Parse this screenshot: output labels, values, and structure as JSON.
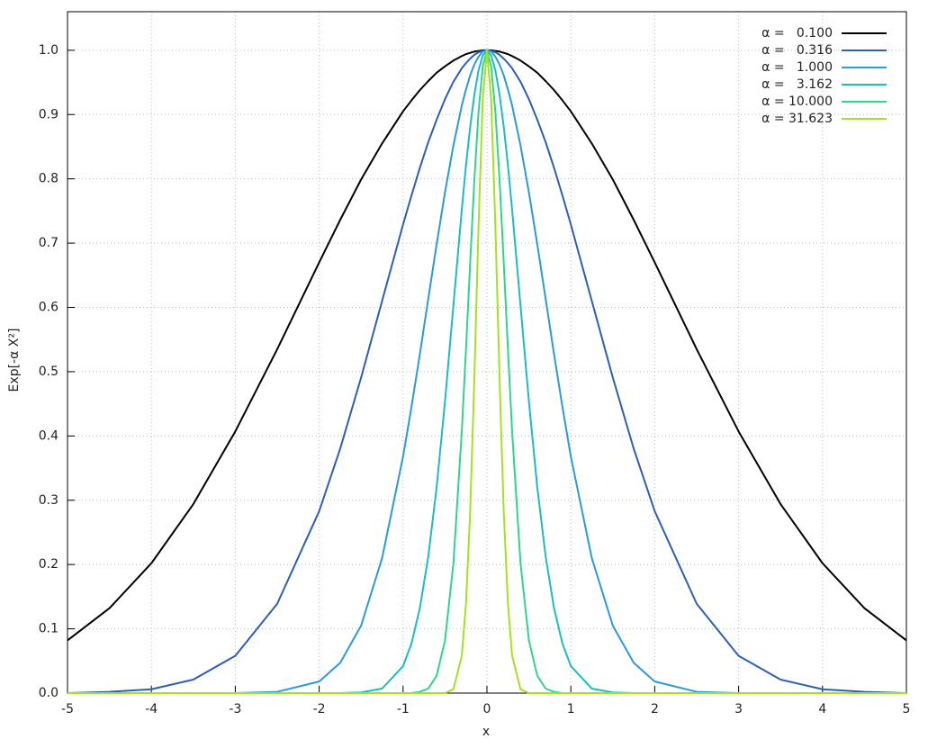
{
  "chart_data": {
    "type": "line",
    "xlabel": "x",
    "ylabel": "Exp[-α X²]",
    "x": [
      -5,
      -4.5,
      -4,
      -3.5,
      -3,
      -2.5,
      -2,
      -1.75,
      -1.5,
      -1.25,
      -1,
      -0.9,
      -0.8,
      -0.7,
      -0.6,
      -0.5,
      -0.4,
      -0.3,
      -0.25,
      -0.2,
      -0.15,
      -0.1,
      -0.05,
      0,
      0.05,
      0.1,
      0.15,
      0.2,
      0.25,
      0.3,
      0.4,
      0.5,
      0.6,
      0.7,
      0.8,
      0.9,
      1,
      1.25,
      1.5,
      1.75,
      2,
      2.5,
      3,
      3.5,
      4,
      4.5,
      5
    ],
    "series": [
      {
        "name": "α =   0.100",
        "color": "#000000",
        "values": [
          0.082,
          0.132,
          0.202,
          0.294,
          0.407,
          0.535,
          0.67,
          0.736,
          0.799,
          0.855,
          0.905,
          0.922,
          0.938,
          0.952,
          0.965,
          0.975,
          0.984,
          0.991,
          0.994,
          0.996,
          0.998,
          0.999,
          1,
          1,
          1,
          0.999,
          0.998,
          0.996,
          0.994,
          0.991,
          0.984,
          0.975,
          0.965,
          0.952,
          0.938,
          0.922,
          0.905,
          0.855,
          0.799,
          0.736,
          0.67,
          0.535,
          0.407,
          0.294,
          0.202,
          0.132,
          0.082
        ]
      },
      {
        "name": "α =   0.316",
        "color": "#2c5fb3",
        "values": [
          0,
          0.002,
          0.006,
          0.021,
          0.058,
          0.139,
          0.283,
          0.38,
          0.491,
          0.61,
          0.729,
          0.774,
          0.817,
          0.857,
          0.892,
          0.924,
          0.951,
          0.972,
          0.98,
          0.987,
          0.993,
          0.997,
          0.999,
          1,
          0.999,
          0.997,
          0.993,
          0.987,
          0.98,
          0.972,
          0.951,
          0.924,
          0.892,
          0.857,
          0.817,
          0.774,
          0.729,
          0.61,
          0.491,
          0.38,
          0.283,
          0.139,
          0.058,
          0.021,
          0.006,
          0.002,
          0
        ]
      },
      {
        "name": "α =   1.000",
        "color": "#2a9ad8",
        "values": [
          0,
          0,
          0,
          0,
          0,
          0.002,
          0.018,
          0.047,
          0.105,
          0.21,
          0.368,
          0.445,
          0.527,
          0.613,
          0.698,
          0.779,
          0.852,
          0.914,
          0.939,
          0.961,
          0.978,
          0.99,
          0.998,
          1,
          0.998,
          0.99,
          0.978,
          0.961,
          0.939,
          0.914,
          0.852,
          0.779,
          0.698,
          0.613,
          0.527,
          0.445,
          0.368,
          0.21,
          0.105,
          0.047,
          0.018,
          0.002,
          0,
          0,
          0,
          0,
          0
        ]
      },
      {
        "name": "α =   3.162",
        "color": "#1cbcc4",
        "values": [
          0,
          0,
          0,
          0,
          0,
          0,
          0,
          0,
          0.001,
          0.007,
          0.042,
          0.077,
          0.132,
          0.212,
          0.32,
          0.454,
          0.603,
          0.752,
          0.821,
          0.881,
          0.931,
          0.969,
          0.992,
          1,
          0.992,
          0.969,
          0.931,
          0.881,
          0.821,
          0.752,
          0.603,
          0.454,
          0.32,
          0.212,
          0.132,
          0.077,
          0.042,
          0.007,
          0.001,
          0,
          0,
          0,
          0,
          0,
          0,
          0,
          0
        ]
      },
      {
        "name": "α = 10.000",
        "color": "#2ed58a",
        "values": [
          0,
          0,
          0,
          0,
          0,
          0,
          0,
          0,
          0,
          0,
          0,
          0,
          0.002,
          0.007,
          0.027,
          0.082,
          0.202,
          0.407,
          0.535,
          0.67,
          0.799,
          0.905,
          0.975,
          1,
          0.975,
          0.905,
          0.799,
          0.67,
          0.535,
          0.407,
          0.202,
          0.082,
          0.027,
          0.007,
          0.002,
          0,
          0,
          0,
          0,
          0,
          0,
          0,
          0,
          0,
          0,
          0,
          0
        ]
      },
      {
        "name": "α = 31.623",
        "color": "#a6e021",
        "values": [
          0,
          0,
          0,
          0,
          0,
          0,
          0,
          0,
          0,
          0,
          0,
          0,
          0,
          0,
          0,
          0,
          0.006,
          0.058,
          0.139,
          0.282,
          0.491,
          0.729,
          0.924,
          1,
          0.924,
          0.729,
          0.491,
          0.282,
          0.139,
          0.058,
          0.006,
          0,
          0,
          0,
          0,
          0,
          0,
          0,
          0,
          0,
          0,
          0,
          0,
          0,
          0,
          0,
          0
        ]
      }
    ],
    "xlim": [
      -5,
      5
    ],
    "ylim": [
      0,
      1.06
    ],
    "xticks": [
      -5,
      -4,
      -3,
      -2,
      -1,
      0,
      1,
      2,
      3,
      4,
      5
    ],
    "yticks": [
      {
        "value": 0,
        "label": "0.0"
      },
      0.1,
      0.2,
      0.3,
      0.4,
      0.5,
      0.6,
      0.7,
      0.8,
      0.9,
      {
        "value": 1,
        "label": "1.0"
      }
    ],
    "grid": true,
    "legend": "upper right"
  }
}
